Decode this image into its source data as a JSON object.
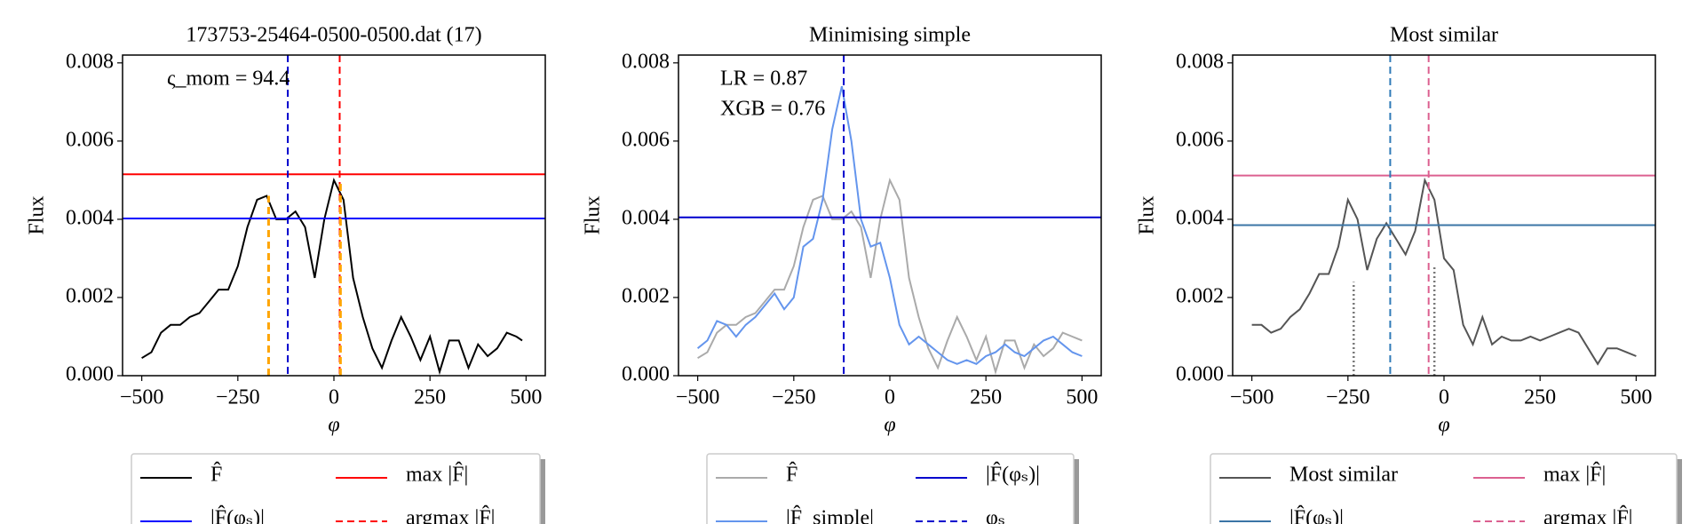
{
  "chart_data": [
    {
      "type": "line",
      "title": "173753-25464-0500-0500.dat (17)",
      "xlabel": "φ",
      "ylabel": "Flux",
      "annotations": [
        "ς_mom = 94.4"
      ],
      "xlim": [
        -550,
        550
      ],
      "ylim": [
        0,
        0.0082
      ],
      "xticks": [
        {
          "value": -500,
          "label": "−500"
        },
        {
          "value": -250,
          "label": "−250"
        },
        0,
        250,
        500
      ],
      "yticks": [
        {
          "value": 0,
          "label": "0.000"
        },
        {
          "value": 0.002,
          "label": "0.002"
        },
        {
          "value": 0.004,
          "label": "0.004"
        },
        {
          "value": 0.006,
          "label": "0.006"
        },
        {
          "value": 0.008,
          "label": "0.008"
        }
      ],
      "lines": [
        {
          "kind": "curve",
          "name": "F̂",
          "color": "#000000",
          "linestyle": "solid",
          "x": [
            -500,
            -475,
            -450,
            -425,
            -400,
            -375,
            -350,
            -325,
            -300,
            -275,
            -250,
            -225,
            -200,
            -175,
            -150,
            -125,
            -100,
            -75,
            -50,
            -25,
            0,
            25,
            50,
            75,
            100,
            125,
            150,
            175,
            200,
            225,
            250,
            275,
            300,
            325,
            350,
            375,
            400,
            425,
            450,
            475,
            490
          ],
          "values": [
            0.00045,
            0.0006,
            0.0011,
            0.0013,
            0.0013,
            0.0015,
            0.0016,
            0.0019,
            0.0022,
            0.0022,
            0.0028,
            0.0038,
            0.0045,
            0.0046,
            0.004,
            0.004,
            0.0042,
            0.0038,
            0.0025,
            0.004,
            0.005,
            0.0045,
            0.0025,
            0.0015,
            0.0007,
            0.0002,
            0.0009,
            0.0015,
            0.001,
            0.0004,
            0.001,
            0.0001,
            0.0009,
            0.0009,
            0.0002,
            0.0008,
            0.0005,
            0.0007,
            0.0011,
            0.001,
            0.0009
          ]
        },
        {
          "kind": "hline",
          "name": "|F̂(φₛ)|",
          "color": "#0000ff",
          "linestyle": "solid",
          "value": 0.00402
        },
        {
          "kind": "hline",
          "name": "max |F̂|",
          "color": "#ff0000",
          "linestyle": "solid",
          "value": 0.00515
        },
        {
          "kind": "vline",
          "name": "argmax |F̂|",
          "color": "#ff0000",
          "linestyle": "dashed",
          "value": 15
        },
        {
          "kind": "vline",
          "color": "#0000cc",
          "linestyle": "dashed",
          "value": -120
        },
        {
          "kind": "stem",
          "color": "#ffa500",
          "linestyle": "dashed",
          "x": [
            -170,
            17
          ],
          "values": [
            0.0046,
            0.005
          ]
        }
      ]
    },
    {
      "type": "line",
      "title": "Minimising simple",
      "xlabel": "φ",
      "ylabel": "Flux",
      "annotations": [
        "LR = 0.87",
        "XGB = 0.76"
      ],
      "xlim": [
        -550,
        550
      ],
      "ylim": [
        0,
        0.0082
      ],
      "xticks": [
        {
          "value": -500,
          "label": "−500"
        },
        {
          "value": -250,
          "label": "−250"
        },
        0,
        250,
        500
      ],
      "yticks": [
        {
          "value": 0,
          "label": "0.000"
        },
        {
          "value": 0.002,
          "label": "0.002"
        },
        {
          "value": 0.004,
          "label": "0.004"
        },
        {
          "value": 0.006,
          "label": "0.006"
        },
        {
          "value": 0.008,
          "label": "0.008"
        }
      ],
      "lines": [
        {
          "kind": "curve",
          "name": "F̂",
          "color": "#aaaaaa",
          "linestyle": "solid",
          "x": [
            -500,
            -475,
            -450,
            -425,
            -400,
            -375,
            -350,
            -325,
            -300,
            -275,
            -250,
            -225,
            -200,
            -175,
            -150,
            -125,
            -100,
            -75,
            -50,
            -25,
            0,
            25,
            50,
            75,
            100,
            125,
            150,
            175,
            200,
            225,
            250,
            275,
            300,
            325,
            350,
            375,
            400,
            425,
            450,
            475,
            500
          ],
          "values": [
            0.00045,
            0.0006,
            0.0011,
            0.0013,
            0.0013,
            0.0015,
            0.0016,
            0.0019,
            0.0022,
            0.0022,
            0.0028,
            0.0038,
            0.0045,
            0.0046,
            0.004,
            0.004,
            0.0042,
            0.0038,
            0.0025,
            0.004,
            0.005,
            0.0045,
            0.0025,
            0.0015,
            0.0007,
            0.0002,
            0.0009,
            0.0015,
            0.001,
            0.0004,
            0.001,
            0.0001,
            0.0009,
            0.0009,
            0.0002,
            0.0008,
            0.0005,
            0.0007,
            0.0011,
            0.001,
            0.0009
          ]
        },
        {
          "kind": "curve",
          "name": "|F̂_simple|",
          "color": "#6495ed",
          "linestyle": "solid",
          "x": [
            -500,
            -475,
            -450,
            -425,
            -400,
            -375,
            -350,
            -325,
            -300,
            -275,
            -250,
            -225,
            -200,
            -175,
            -150,
            -125,
            -100,
            -75,
            -50,
            -25,
            0,
            25,
            50,
            75,
            100,
            125,
            150,
            175,
            200,
            225,
            250,
            275,
            300,
            325,
            350,
            375,
            400,
            425,
            450,
            475,
            500
          ],
          "values": [
            0.0007,
            0.0009,
            0.0014,
            0.0013,
            0.001,
            0.0013,
            0.0015,
            0.0018,
            0.0021,
            0.0017,
            0.002,
            0.0033,
            0.0035,
            0.0045,
            0.0063,
            0.0074,
            0.006,
            0.004,
            0.0033,
            0.0034,
            0.0025,
            0.0013,
            0.0008,
            0.001,
            0.0008,
            0.0006,
            0.0004,
            0.0003,
            0.0004,
            0.0003,
            0.0005,
            0.0006,
            0.0008,
            0.0006,
            0.0005,
            0.0007,
            0.0009,
            0.001,
            0.0008,
            0.0006,
            0.0005
          ]
        },
        {
          "kind": "hline",
          "name": "|F̂(φₛ)|",
          "color": "#0000cd",
          "linestyle": "solid",
          "value": 0.00405
        },
        {
          "kind": "vline",
          "name": "φₛ",
          "color": "#0000cd",
          "linestyle": "dashed",
          "value": -120
        }
      ]
    },
    {
      "type": "line",
      "title": "Most similar",
      "xlabel": "φ",
      "ylabel": "Flux",
      "xlim": [
        -550,
        550
      ],
      "ylim": [
        0,
        0.0082
      ],
      "xticks": [
        {
          "value": -500,
          "label": "−500"
        },
        {
          "value": -250,
          "label": "−250"
        },
        0,
        250,
        500
      ],
      "yticks": [
        {
          "value": 0,
          "label": "0.000"
        },
        {
          "value": 0.002,
          "label": "0.002"
        },
        {
          "value": 0.004,
          "label": "0.004"
        },
        {
          "value": 0.006,
          "label": "0.006"
        },
        {
          "value": 0.008,
          "label": "0.008"
        }
      ],
      "lines": [
        {
          "kind": "curve",
          "name": "Most similar",
          "color": "#555555",
          "linestyle": "solid",
          "x": [
            -500,
            -475,
            -450,
            -425,
            -400,
            -375,
            -350,
            -325,
            -300,
            -275,
            -250,
            -225,
            -200,
            -175,
            -150,
            -125,
            -100,
            -75,
            -50,
            -25,
            0,
            25,
            50,
            75,
            100,
            125,
            150,
            175,
            200,
            225,
            250,
            275,
            300,
            325,
            350,
            375,
            400,
            425,
            450,
            475,
            500
          ],
          "values": [
            0.0013,
            0.0013,
            0.0011,
            0.0012,
            0.0015,
            0.0017,
            0.0021,
            0.0026,
            0.0026,
            0.0033,
            0.0045,
            0.004,
            0.0027,
            0.0035,
            0.0039,
            0.0035,
            0.0031,
            0.0037,
            0.005,
            0.0045,
            0.003,
            0.0027,
            0.0013,
            0.0008,
            0.0015,
            0.0008,
            0.001,
            0.0009,
            0.0009,
            0.001,
            0.0009,
            0.001,
            0.0011,
            0.0012,
            0.0011,
            0.0007,
            0.0003,
            0.0007,
            0.0007,
            0.0006,
            0.0005
          ]
        },
        {
          "kind": "hline",
          "name": "|F̂(φₛ)|",
          "color": "#3b75a6",
          "linestyle": "solid",
          "value": 0.00385
        },
        {
          "kind": "hline",
          "name": "max |F̂|",
          "color": "#dc6090",
          "linestyle": "solid",
          "value": 0.00512
        },
        {
          "kind": "vline",
          "name": "argmax |F̂|",
          "color": "#dc6090",
          "linestyle": "dashed",
          "value": -40
        },
        {
          "kind": "vline",
          "color": "#2f7ab8",
          "linestyle": "dashed",
          "value": -140
        },
        {
          "kind": "stem",
          "color": "#777777",
          "linestyle": "dotted",
          "x": [
            -235,
            -25
          ],
          "values": [
            0.0024,
            0.0028
          ]
        }
      ]
    }
  ]
}
